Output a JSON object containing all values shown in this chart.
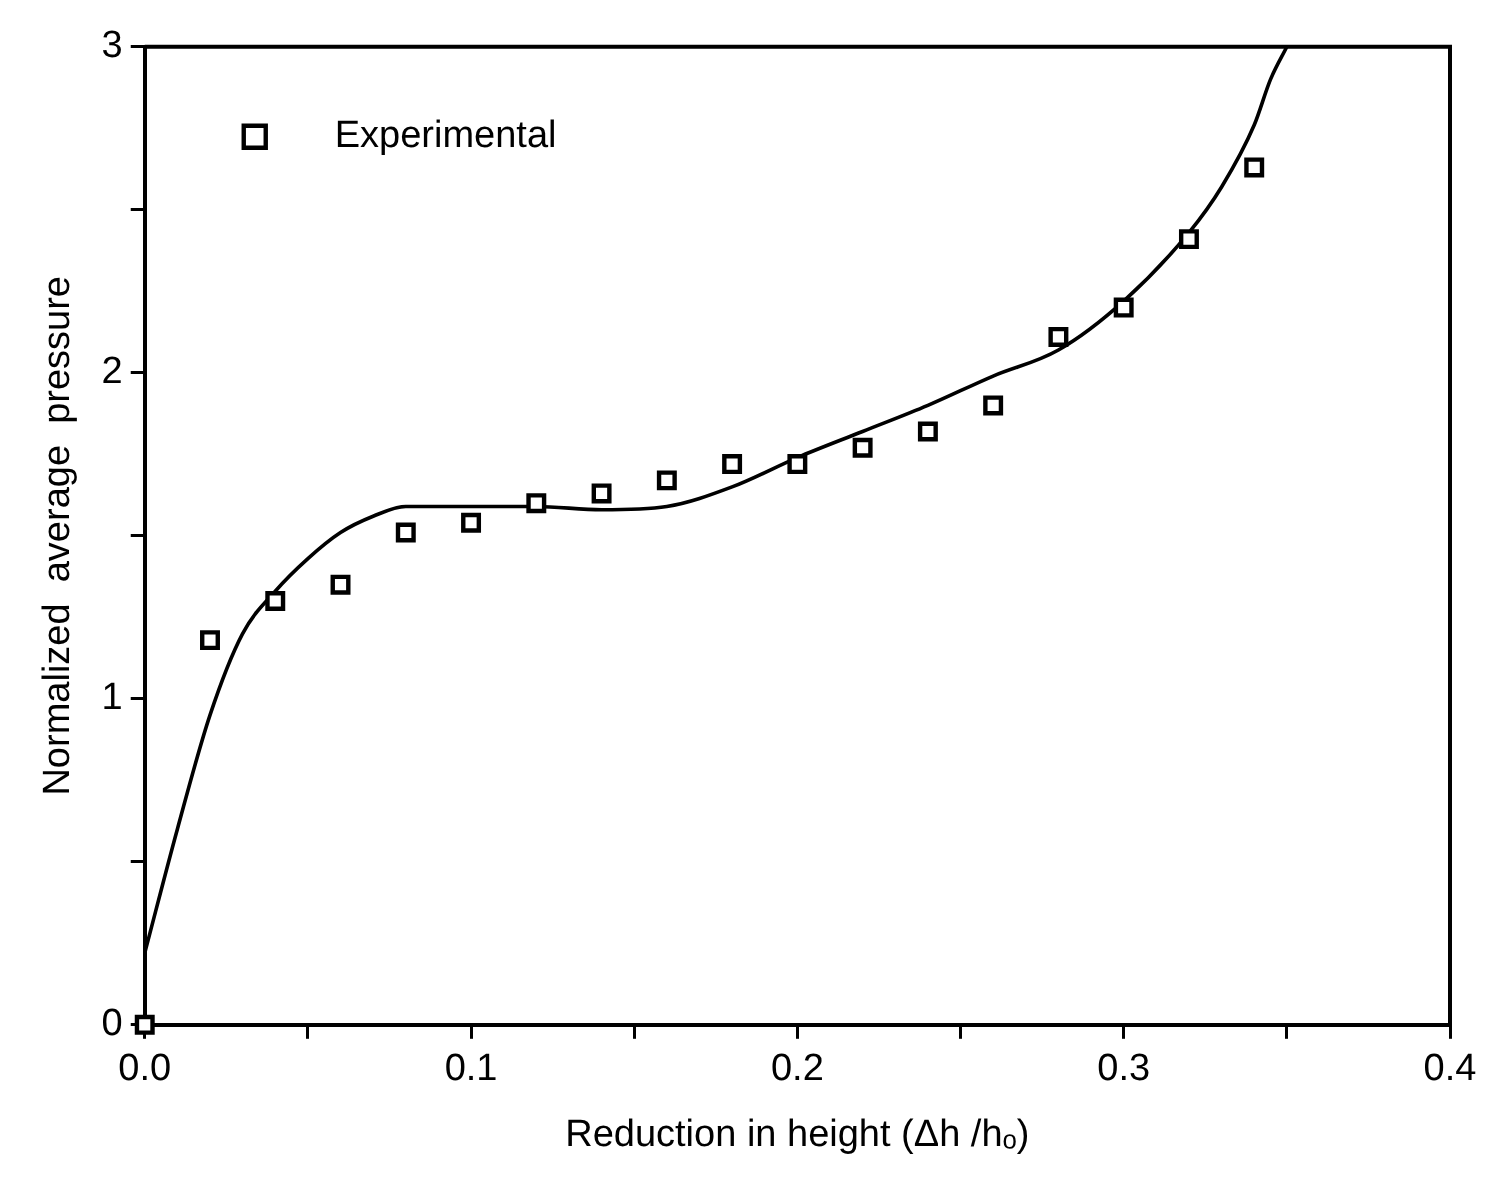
{
  "chart_data": {
    "type": "scatter",
    "xlabel": "Reduction in height (Δh /hₒ)",
    "ylabel": "Normalized  average  pressure",
    "xlim": [
      0,
      0.4
    ],
    "ylim": [
      0,
      3
    ],
    "xticks": [
      {
        "value": 0,
        "label": "0.0"
      },
      {
        "value": 0.05,
        "label": null
      },
      {
        "value": 0.1,
        "label": "0.1"
      },
      {
        "value": 0.15,
        "label": null
      },
      {
        "value": 0.2,
        "label": "0.2"
      },
      {
        "value": 0.25,
        "label": null
      },
      {
        "value": 0.3,
        "label": "0.3"
      },
      {
        "value": 0.35,
        "label": null
      },
      {
        "value": 0.4,
        "label": "0.4"
      }
    ],
    "yticks": [
      0,
      {
        "value": 0.5,
        "label": null
      },
      1,
      {
        "value": 1.5,
        "label": null
      },
      2,
      {
        "value": 2.5,
        "label": null
      },
      3
    ],
    "grid": false,
    "legend": "top left",
    "series": [
      {
        "name": "Experimental",
        "type": "scatter",
        "marker": "square",
        "color": "#000000",
        "x": [
          0,
          0.02,
          0.04,
          0.06,
          0.08,
          0.1,
          0.12,
          0.14,
          0.16,
          0.18,
          0.2,
          0.22,
          0.24,
          0.26,
          0.28,
          0.3,
          0.32,
          0.34
        ],
        "values": [
          0,
          1.18,
          1.3,
          1.35,
          1.51,
          1.54,
          1.6,
          1.63,
          1.67,
          1.72,
          1.72,
          1.77,
          1.82,
          1.9,
          2.11,
          2.2,
          2.41,
          2.63
        ]
      },
      {
        "type": "line",
        "marker": "none",
        "line_style": "solid",
        "color": "#000000",
        "x": [
          0,
          0.01,
          0.02,
          0.03,
          0.04,
          0.05,
          0.06,
          0.07,
          0.08,
          0.1,
          0.12,
          0.14,
          0.16,
          0.18,
          0.2,
          0.22,
          0.24,
          0.26,
          0.28,
          0.3,
          0.32,
          0.33,
          0.34,
          0.345,
          0.35
        ],
        "values": [
          0.22,
          0.6,
          0.95,
          1.2,
          1.33,
          1.43,
          1.51,
          1.56,
          1.59,
          1.59,
          1.59,
          1.58,
          1.59,
          1.65,
          1.74,
          1.82,
          1.9,
          1.99,
          2.07,
          2.22,
          2.43,
          2.57,
          2.76,
          2.9,
          3.0
        ]
      }
    ]
  }
}
